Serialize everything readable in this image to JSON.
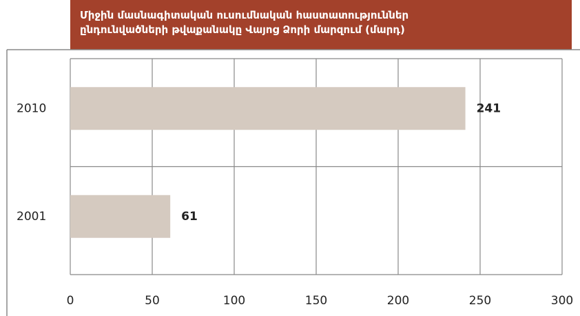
{
  "chart_data": {
    "type": "barh",
    "title": "Միջին մասնագիտական ուսումնական հաստատություններ\nընդունվածների թվաքանակը Վայոց Ձորի մարզում (մարդ)",
    "categories": [
      "2010",
      "2001"
    ],
    "values": [
      241,
      61
    ],
    "color": "#d5cac0",
    "xlim": [
      0,
      300
    ],
    "xticks": [
      0,
      50,
      100,
      150,
      200,
      250,
      300
    ],
    "grid": true
  }
}
